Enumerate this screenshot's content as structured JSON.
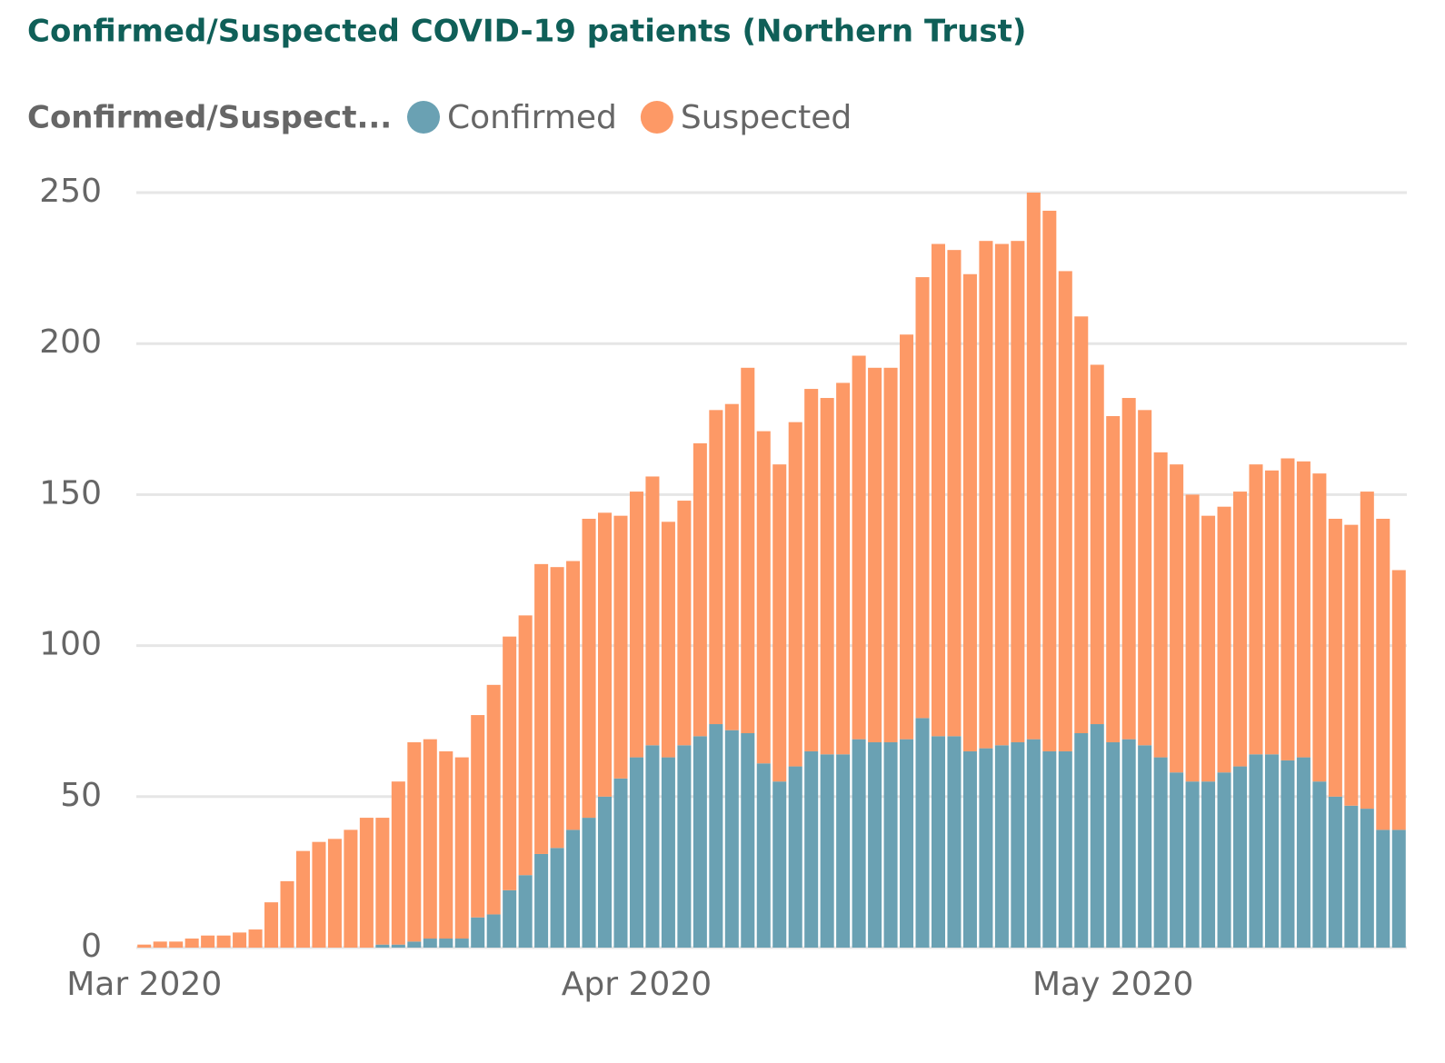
{
  "chart_data": {
    "type": "stacked_bar",
    "title": "Confirmed/Suspected COVID-19 patients (Northern Trust)",
    "legend_title": "Confirmed/Suspect...",
    "categories": [
      "Mar 2020",
      null,
      null,
      null,
      null,
      null,
      null,
      null,
      null,
      null,
      null,
      null,
      null,
      null,
      null,
      null,
      null,
      null,
      null,
      null,
      null,
      null,
      null,
      null,
      null,
      null,
      null,
      null,
      null,
      null,
      null,
      "Apr 2020",
      null,
      null,
      null,
      null,
      null,
      null,
      null,
      null,
      null,
      null,
      null,
      null,
      null,
      null,
      null,
      null,
      null,
      null,
      null,
      null,
      null,
      null,
      null,
      null,
      null,
      null,
      null,
      null,
      null,
      "May 2020",
      null,
      null,
      null,
      null,
      null,
      null,
      null,
      null,
      null,
      null,
      null,
      null,
      null,
      null,
      null,
      null,
      null,
      null
    ],
    "series": [
      {
        "name": "Confirmed",
        "color": "#6aa1b3",
        "values": [
          0,
          0,
          0,
          0,
          0,
          0,
          0,
          0,
          0,
          0,
          0,
          0,
          0,
          0,
          0,
          1,
          1,
          2,
          3,
          3,
          3,
          10,
          11,
          19,
          24,
          31,
          33,
          39,
          43,
          50,
          56,
          63,
          67,
          63,
          67,
          70,
          74,
          72,
          71,
          61,
          55,
          60,
          65,
          64,
          64,
          69,
          68,
          68,
          69,
          76,
          70,
          70,
          65,
          66,
          67,
          68,
          69,
          65,
          65,
          71,
          74,
          68,
          69,
          67,
          63,
          58,
          55,
          55,
          58,
          60,
          64,
          64,
          62,
          63,
          55,
          50,
          47,
          46,
          39,
          39
        ]
      },
      {
        "name": "Suspected",
        "color": "#fd9966",
        "values": [
          1,
          2,
          2,
          3,
          4,
          4,
          5,
          6,
          15,
          22,
          32,
          35,
          36,
          39,
          43,
          42,
          54,
          66,
          66,
          62,
          60,
          67,
          76,
          84,
          86,
          96,
          93,
          89,
          99,
          94,
          87,
          88,
          89,
          78,
          81,
          97,
          104,
          108,
          121,
          110,
          105,
          114,
          120,
          118,
          123,
          127,
          124,
          124,
          134,
          146,
          163,
          161,
          158,
          168,
          166,
          166,
          181,
          179,
          159,
          138,
          119,
          108,
          113,
          111,
          101,
          102,
          95,
          88,
          88,
          91,
          96,
          94,
          100,
          98,
          102,
          92,
          93,
          105,
          103,
          86
        ]
      }
    ],
    "ylim": [
      0,
      250
    ],
    "yticks": [
      0,
      50,
      100,
      150,
      200,
      250
    ],
    "grid": true
  }
}
